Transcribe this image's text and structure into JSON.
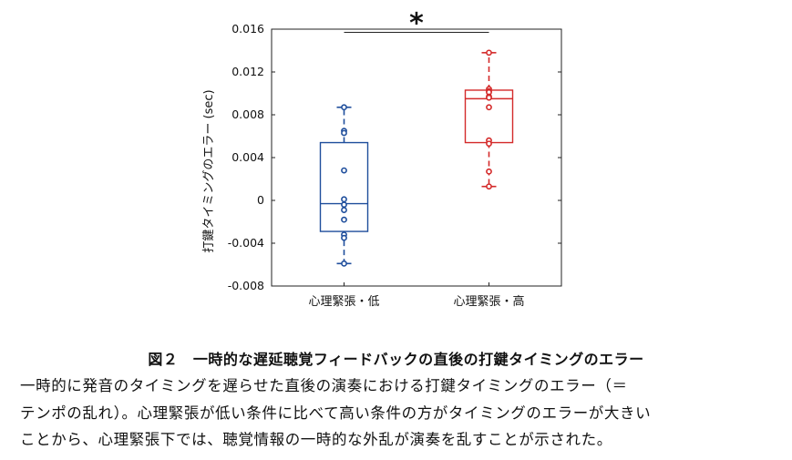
{
  "chart_data": {
    "type": "box",
    "ylabel": "打鍵タイミングのエラー (sec)",
    "ylim": [
      -0.008,
      0.016
    ],
    "yticks": [
      -0.008,
      -0.004,
      0,
      0.004,
      0.008,
      0.012,
      0.016
    ],
    "ytick_labels": [
      "-0.008",
      "-0.004",
      "0",
      "0.004",
      "0.008",
      "0.012",
      "0.016"
    ],
    "categories": [
      "心理緊張・低",
      "心理緊張・高"
    ],
    "groups": [
      {
        "category": "心理緊張・低",
        "color": "#1f4e9c",
        "box": {
          "whisker_low": -0.0059,
          "q1": -0.0029,
          "median": -0.0003,
          "q3": 0.0054,
          "whisker_high": 0.0087
        },
        "points": [
          0.0087,
          0.0065,
          0.0063,
          0.0028,
          0.0001,
          -0.0004,
          -0.0009,
          -0.0018,
          -0.0032,
          -0.0035,
          -0.0059
        ]
      },
      {
        "category": "心理緊張・高",
        "color": "#d42a2a",
        "box": {
          "whisker_low": 0.0013,
          "q1": 0.0054,
          "median": 0.0095,
          "q3": 0.0103,
          "whisker_high": 0.0138
        },
        "points": [
          0.0138,
          0.0104,
          0.0102,
          0.0101,
          0.0097,
          0.0096,
          0.0087,
          0.0056,
          0.0053,
          0.0027,
          0.0013
        ]
      }
    ],
    "annotation": {
      "text": "*",
      "between": [
        "心理緊張・低",
        "心理緊張・高"
      ],
      "y": 0.0157
    }
  },
  "caption": {
    "title": "図２　一時的な遅延聴覚フィードバックの直後の打鍵タイミングのエラー",
    "lines": [
      "一時的に発音のタイミングを遅らせた直後の演奏における打鍵タイミングのエラー（＝",
      "テンポの乱れ）。心理緊張が低い条件に比べて高い条件の方がタイミングのエラーが大きい",
      "ことから、心理緊張下では、聴覚情報の一時的な外乱が演奏を乱すことが示された。"
    ]
  }
}
